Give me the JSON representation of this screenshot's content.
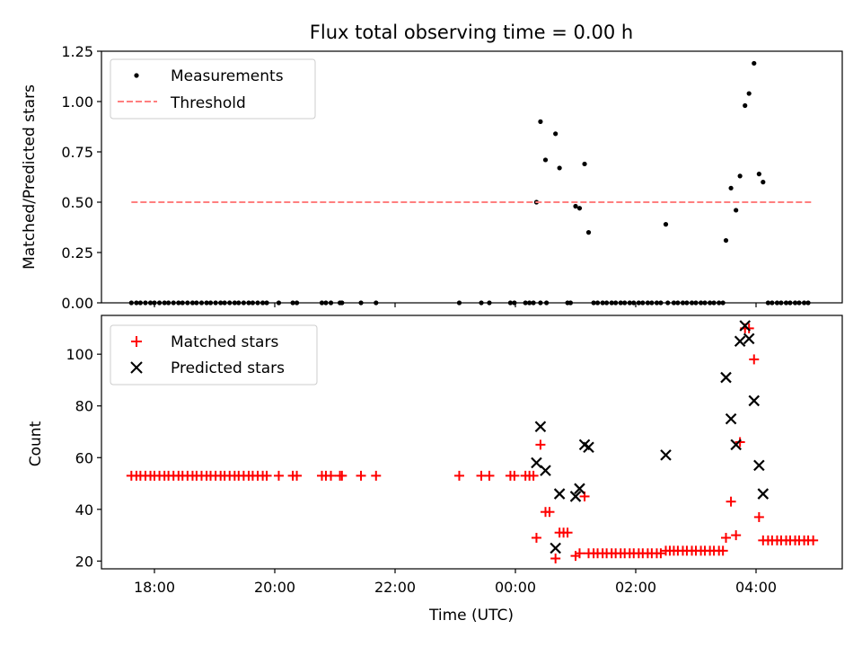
{
  "chart_data": [
    {
      "type": "scatter",
      "title": "Flux total observing time = 0.00 h",
      "ylabel": "Matched/Predicted stars",
      "xlabel": "",
      "ylim": [
        0.0,
        1.25
      ],
      "yticks": [
        "0.00",
        "0.25",
        "0.50",
        "0.75",
        "1.00",
        "1.25"
      ],
      "xtick_labels": [],
      "grid": false,
      "legend_position": "top-left",
      "series": [
        {
          "name": "Measurements",
          "marker": "dot",
          "color": "#000000",
          "points": [
            [
              "17:37",
              0
            ],
            [
              "17:42",
              0
            ],
            [
              "17:46",
              0
            ],
            [
              "17:51",
              0
            ],
            [
              "17:56",
              0
            ],
            [
              "18:00",
              0
            ],
            [
              "18:05",
              0
            ],
            [
              "18:10",
              0
            ],
            [
              "18:14",
              0
            ],
            [
              "18:19",
              0
            ],
            [
              "18:24",
              0
            ],
            [
              "18:28",
              0
            ],
            [
              "18:33",
              0
            ],
            [
              "18:38",
              0
            ],
            [
              "18:42",
              0
            ],
            [
              "18:47",
              0
            ],
            [
              "18:52",
              0
            ],
            [
              "18:56",
              0
            ],
            [
              "19:01",
              0
            ],
            [
              "19:06",
              0
            ],
            [
              "19:10",
              0
            ],
            [
              "19:15",
              0
            ],
            [
              "19:20",
              0
            ],
            [
              "19:24",
              0
            ],
            [
              "19:29",
              0
            ],
            [
              "19:34",
              0
            ],
            [
              "19:38",
              0
            ],
            [
              "19:43",
              0
            ],
            [
              "19:48",
              0
            ],
            [
              "19:52",
              0
            ],
            [
              "20:04",
              0
            ],
            [
              "20:18",
              0
            ],
            [
              "20:22",
              0
            ],
            [
              "20:47",
              0
            ],
            [
              "20:51",
              0
            ],
            [
              "20:56",
              0
            ],
            [
              "21:05",
              0
            ],
            [
              "21:07",
              0
            ],
            [
              "21:26",
              0
            ],
            [
              "21:41",
              0
            ],
            [
              "23:04",
              0
            ],
            [
              "23:26",
              0
            ],
            [
              "23:34",
              0
            ],
            [
              "23:55",
              0
            ],
            [
              "23:59",
              0
            ],
            [
              "00:10",
              0
            ],
            [
              "00:14",
              0
            ],
            [
              "00:18",
              0
            ],
            [
              "00:25",
              0
            ],
            [
              "00:31",
              0
            ],
            [
              "00:21",
              0.5
            ],
            [
              "00:25",
              0.9
            ],
            [
              "00:30",
              0.71
            ],
            [
              "00:40",
              0.84
            ],
            [
              "00:44",
              0.67
            ],
            [
              "00:52",
              0
            ],
            [
              "00:55",
              0
            ],
            [
              "01:00",
              0.48
            ],
            [
              "01:04",
              0.47
            ],
            [
              "01:09",
              0.69
            ],
            [
              "01:13",
              0.35
            ],
            [
              "01:18",
              0
            ],
            [
              "01:22",
              0
            ],
            [
              "01:27",
              0
            ],
            [
              "01:31",
              0
            ],
            [
              "01:36",
              0
            ],
            [
              "01:40",
              0
            ],
            [
              "01:45",
              0
            ],
            [
              "01:49",
              0
            ],
            [
              "01:54",
              0
            ],
            [
              "01:58",
              0
            ],
            [
              "02:03",
              0
            ],
            [
              "02:07",
              0
            ],
            [
              "02:12",
              0
            ],
            [
              "02:16",
              0
            ],
            [
              "02:21",
              0
            ],
            [
              "02:25",
              0
            ],
            [
              "02:32",
              0
            ],
            [
              "02:30",
              0.39
            ],
            [
              "02:38",
              0
            ],
            [
              "02:42",
              0
            ],
            [
              "02:47",
              0
            ],
            [
              "02:51",
              0
            ],
            [
              "02:56",
              0
            ],
            [
              "03:00",
              0
            ],
            [
              "03:05",
              0
            ],
            [
              "03:09",
              0
            ],
            [
              "03:14",
              0
            ],
            [
              "03:18",
              0
            ],
            [
              "03:23",
              0
            ],
            [
              "03:27",
              0
            ],
            [
              "03:30",
              0.31
            ],
            [
              "03:35",
              0.57
            ],
            [
              "03:40",
              0.46
            ],
            [
              "03:44",
              0.63
            ],
            [
              "03:49",
              0.98
            ],
            [
              "03:53",
              1.04
            ],
            [
              "03:58",
              1.19
            ],
            [
              "04:03",
              0.64
            ],
            [
              "04:07",
              0.6
            ],
            [
              "04:12",
              0
            ],
            [
              "04:16",
              0
            ],
            [
              "04:21",
              0
            ],
            [
              "04:25",
              0
            ],
            [
              "04:30",
              0
            ],
            [
              "04:34",
              0
            ],
            [
              "04:39",
              0
            ],
            [
              "04:43",
              0
            ],
            [
              "04:48",
              0
            ],
            [
              "04:52",
              0
            ]
          ]
        },
        {
          "name": "Threshold",
          "marker": "dashed-line",
          "color": "#ff7f7f",
          "points": [
            [
              "17:37",
              0.5
            ],
            [
              "04:57",
              0.5
            ]
          ]
        }
      ]
    },
    {
      "type": "scatter",
      "title": "",
      "ylabel": "Count",
      "xlabel": "Time (UTC)",
      "ylim": [
        17,
        115
      ],
      "yticks": [
        "20",
        "40",
        "60",
        "80",
        "100"
      ],
      "xtick_labels": [
        "18:00",
        "20:00",
        "22:00",
        "00:00",
        "02:00",
        "04:00"
      ],
      "grid": false,
      "legend_position": "top-left",
      "series": [
        {
          "name": "Matched stars",
          "marker": "plus",
          "color": "#ff0000",
          "points": [
            [
              "17:37",
              53
            ],
            [
              "17:42",
              53
            ],
            [
              "17:46",
              53
            ],
            [
              "17:51",
              53
            ],
            [
              "17:56",
              53
            ],
            [
              "18:00",
              53
            ],
            [
              "18:05",
              53
            ],
            [
              "18:10",
              53
            ],
            [
              "18:14",
              53
            ],
            [
              "18:19",
              53
            ],
            [
              "18:24",
              53
            ],
            [
              "18:28",
              53
            ],
            [
              "18:33",
              53
            ],
            [
              "18:38",
              53
            ],
            [
              "18:42",
              53
            ],
            [
              "18:47",
              53
            ],
            [
              "18:52",
              53
            ],
            [
              "18:56",
              53
            ],
            [
              "19:01",
              53
            ],
            [
              "19:06",
              53
            ],
            [
              "19:10",
              53
            ],
            [
              "19:15",
              53
            ],
            [
              "19:20",
              53
            ],
            [
              "19:24",
              53
            ],
            [
              "19:29",
              53
            ],
            [
              "19:34",
              53
            ],
            [
              "19:38",
              53
            ],
            [
              "19:43",
              53
            ],
            [
              "19:48",
              53
            ],
            [
              "19:52",
              53
            ],
            [
              "20:04",
              53
            ],
            [
              "20:18",
              53
            ],
            [
              "20:22",
              53
            ],
            [
              "20:47",
              53
            ],
            [
              "20:51",
              53
            ],
            [
              "20:56",
              53
            ],
            [
              "21:05",
              53
            ],
            [
              "21:07",
              53
            ],
            [
              "21:26",
              53
            ],
            [
              "21:41",
              53
            ],
            [
              "23:04",
              53
            ],
            [
              "23:26",
              53
            ],
            [
              "23:34",
              53
            ],
            [
              "23:55",
              53
            ],
            [
              "23:59",
              53
            ],
            [
              "00:10",
              53
            ],
            [
              "00:14",
              53
            ],
            [
              "00:18",
              53
            ],
            [
              "00:21",
              29
            ],
            [
              "00:25",
              65
            ],
            [
              "00:30",
              39
            ],
            [
              "00:34",
              39
            ],
            [
              "00:40",
              21
            ],
            [
              "00:44",
              31
            ],
            [
              "00:48",
              31
            ],
            [
              "00:52",
              31
            ],
            [
              "01:00",
              22
            ],
            [
              "01:04",
              23
            ],
            [
              "01:09",
              45
            ],
            [
              "01:13",
              23
            ],
            [
              "01:18",
              23
            ],
            [
              "01:22",
              23
            ],
            [
              "01:27",
              23
            ],
            [
              "01:31",
              23
            ],
            [
              "01:36",
              23
            ],
            [
              "01:40",
              23
            ],
            [
              "01:45",
              23
            ],
            [
              "01:49",
              23
            ],
            [
              "01:54",
              23
            ],
            [
              "01:58",
              23
            ],
            [
              "02:03",
              23
            ],
            [
              "02:07",
              23
            ],
            [
              "02:12",
              23
            ],
            [
              "02:16",
              23
            ],
            [
              "02:21",
              23
            ],
            [
              "02:25",
              23
            ],
            [
              "02:30",
              24
            ],
            [
              "02:34",
              24
            ],
            [
              "02:38",
              24
            ],
            [
              "02:42",
              24
            ],
            [
              "02:47",
              24
            ],
            [
              "02:51",
              24
            ],
            [
              "02:56",
              24
            ],
            [
              "03:00",
              24
            ],
            [
              "03:05",
              24
            ],
            [
              "03:09",
              24
            ],
            [
              "03:14",
              24
            ],
            [
              "03:18",
              24
            ],
            [
              "03:23",
              24
            ],
            [
              "03:27",
              24
            ],
            [
              "03:30",
              29
            ],
            [
              "03:35",
              43
            ],
            [
              "03:40",
              30
            ],
            [
              "03:44",
              66
            ],
            [
              "03:49",
              110
            ],
            [
              "03:53",
              110
            ],
            [
              "03:58",
              98
            ],
            [
              "04:03",
              37
            ],
            [
              "04:07",
              28
            ],
            [
              "04:12",
              28
            ],
            [
              "04:16",
              28
            ],
            [
              "04:21",
              28
            ],
            [
              "04:25",
              28
            ],
            [
              "04:30",
              28
            ],
            [
              "04:34",
              28
            ],
            [
              "04:39",
              28
            ],
            [
              "04:43",
              28
            ],
            [
              "04:48",
              28
            ],
            [
              "04:52",
              28
            ],
            [
              "04:57",
              28
            ]
          ]
        },
        {
          "name": "Predicted stars",
          "marker": "x",
          "color": "#000000",
          "points": [
            [
              "00:21",
              58
            ],
            [
              "00:25",
              72
            ],
            [
              "00:30",
              55
            ],
            [
              "00:40",
              25
            ],
            [
              "00:44",
              46
            ],
            [
              "01:00",
              45
            ],
            [
              "01:04",
              48
            ],
            [
              "01:09",
              65
            ],
            [
              "01:13",
              64
            ],
            [
              "02:30",
              61
            ],
            [
              "03:30",
              91
            ],
            [
              "03:35",
              75
            ],
            [
              "03:40",
              65
            ],
            [
              "03:44",
              105
            ],
            [
              "03:49",
              111
            ],
            [
              "03:53",
              106
            ],
            [
              "03:58",
              82
            ],
            [
              "04:03",
              57
            ],
            [
              "04:07",
              46
            ]
          ]
        }
      ]
    }
  ]
}
